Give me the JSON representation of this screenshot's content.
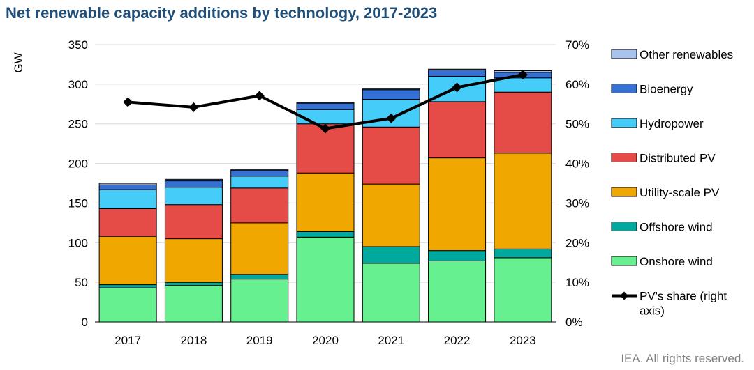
{
  "title": "Net renewable capacity additions by technology, 2017-2023",
  "footer": "IEA. All rights reserved.",
  "chart_data": {
    "type": "bar",
    "stacked": true,
    "title": "Net renewable capacity additions by technology, 2017-2023",
    "ylabel": "GW",
    "y2label": "",
    "ylim": [
      0,
      350
    ],
    "yticks": [
      0,
      50,
      100,
      150,
      200,
      250,
      300,
      350
    ],
    "y2lim": [
      0,
      70
    ],
    "y2ticks": [
      "0%",
      "10%",
      "20%",
      "30%",
      "40%",
      "50%",
      "60%",
      "70%"
    ],
    "categories": [
      "2017",
      "2018",
      "2019",
      "2020",
      "2021",
      "2022",
      "2023"
    ],
    "series": [
      {
        "name": "Onshore wind",
        "color": "#66f090",
        "values": [
          43,
          46,
          54,
          107,
          74,
          77,
          81
        ]
      },
      {
        "name": "Offshore wind",
        "color": "#00a99d",
        "values": [
          4,
          4,
          6,
          7,
          21,
          13,
          11
        ]
      },
      {
        "name": "Utility-scale PV",
        "color": "#f0a800",
        "values": [
          61,
          55,
          65,
          74,
          79,
          117,
          121
        ]
      },
      {
        "name": "Distributed PV",
        "color": "#e64c47",
        "values": [
          35,
          43,
          44,
          62,
          72,
          71,
          77
        ]
      },
      {
        "name": "Hydropower",
        "color": "#45ccf9",
        "values": [
          24,
          22,
          15,
          18,
          35,
          32,
          18
        ]
      },
      {
        "name": "Bioenergy",
        "color": "#3570d4",
        "values": [
          6,
          8,
          7,
          8,
          12,
          8,
          7
        ]
      },
      {
        "name": "Other renewables",
        "color": "#a8c4ee",
        "values": [
          2,
          2,
          1,
          1,
          1,
          1,
          2
        ]
      }
    ],
    "line": {
      "name": "PV's share (right axis)",
      "color": "#000000",
      "axis": "right",
      "values": [
        55.5,
        54.2,
        57.1,
        48.8,
        51.4,
        59.2,
        62.4
      ]
    },
    "legend_order": [
      "Other renewables",
      "Bioenergy",
      "Hydropower",
      "Distributed PV",
      "Utility-scale PV",
      "Offshore wind",
      "Onshore wind",
      "PV's share (right axis)"
    ],
    "legend_position": "right",
    "grid": "horizontal"
  }
}
